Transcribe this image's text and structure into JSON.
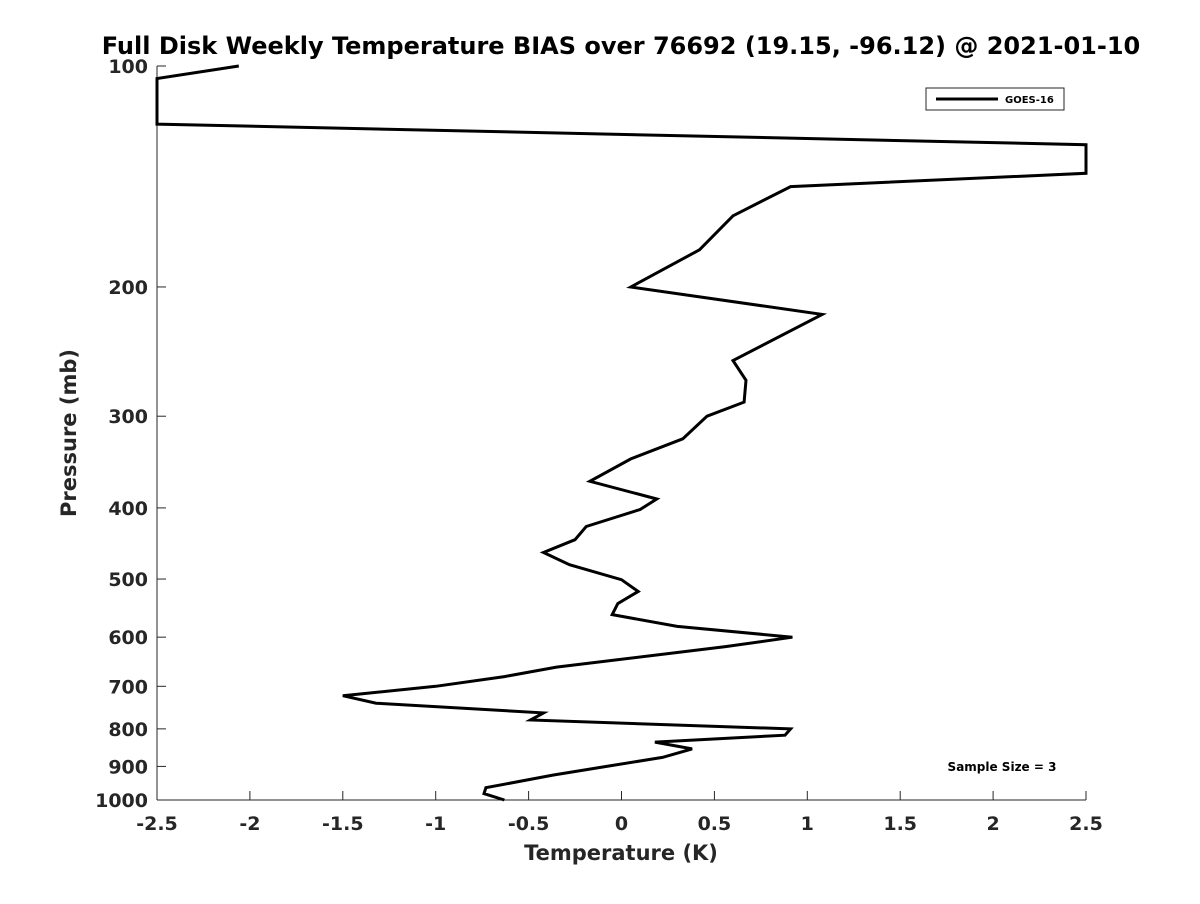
{
  "chart_data": {
    "type": "line",
    "title": "Full Disk Weekly Temperature BIAS over 76692 (19.15, -96.12) @ 2021-01-10",
    "xlabel": "Temperature (K)",
    "ylabel": "Pressure (mb)",
    "xlim": [
      -2.5,
      2.5
    ],
    "ylim": [
      1000,
      100
    ],
    "y_scale": "log",
    "grid": false,
    "legend_position": "top-right",
    "annotation": "Sample Size = 3",
    "x_ticks": [
      -2.5,
      -2,
      -1.5,
      -1,
      -0.5,
      0,
      0.5,
      1,
      1.5,
      2,
      2.5
    ],
    "x_tick_labels": [
      "-2.5",
      "-2",
      "-1.5",
      "-1",
      "-0.5",
      "0",
      "0.5",
      "1",
      "1.5",
      "2",
      "2.5"
    ],
    "y_ticks": [
      100,
      200,
      300,
      400,
      500,
      600,
      700,
      800,
      900,
      1000
    ],
    "y_tick_labels": [
      "100",
      "200",
      "300",
      "400",
      "500",
      "600",
      "700",
      "800",
      "900",
      "1000"
    ],
    "series": [
      {
        "name": "GOES-16",
        "color": "#000000",
        "points": [
          {
            "t": -2.06,
            "p": 100
          },
          {
            "t": -2.5,
            "p": 104
          },
          {
            "t": -2.5,
            "p": 120
          },
          {
            "t": 2.5,
            "p": 128
          },
          {
            "t": 2.5,
            "p": 140
          },
          {
            "t": 0.91,
            "p": 146
          },
          {
            "t": 0.6,
            "p": 160
          },
          {
            "t": 0.42,
            "p": 178
          },
          {
            "t": 0.05,
            "p": 200
          },
          {
            "t": 1.08,
            "p": 218
          },
          {
            "t": 0.6,
            "p": 252
          },
          {
            "t": 0.67,
            "p": 268
          },
          {
            "t": 0.66,
            "p": 287
          },
          {
            "t": 0.46,
            "p": 300
          },
          {
            "t": 0.33,
            "p": 322
          },
          {
            "t": 0.05,
            "p": 343
          },
          {
            "t": -0.17,
            "p": 368
          },
          {
            "t": 0.19,
            "p": 389
          },
          {
            "t": 0.1,
            "p": 402
          },
          {
            "t": -0.19,
            "p": 424
          },
          {
            "t": -0.25,
            "p": 442
          },
          {
            "t": -0.42,
            "p": 460
          },
          {
            "t": -0.28,
            "p": 478
          },
          {
            "t": 0.0,
            "p": 501
          },
          {
            "t": 0.09,
            "p": 520
          },
          {
            "t": -0.02,
            "p": 540
          },
          {
            "t": -0.05,
            "p": 559
          },
          {
            "t": 0.3,
            "p": 580
          },
          {
            "t": 0.92,
            "p": 600
          },
          {
            "t": 0.56,
            "p": 618
          },
          {
            "t": -0.35,
            "p": 659
          },
          {
            "t": -0.63,
            "p": 679
          },
          {
            "t": -1.0,
            "p": 700
          },
          {
            "t": -1.5,
            "p": 721
          },
          {
            "t": -1.32,
            "p": 738
          },
          {
            "t": -0.42,
            "p": 761
          },
          {
            "t": -0.49,
            "p": 778
          },
          {
            "t": 0.91,
            "p": 800
          },
          {
            "t": 0.88,
            "p": 816
          },
          {
            "t": 0.18,
            "p": 834
          },
          {
            "t": 0.38,
            "p": 852
          },
          {
            "t": 0.22,
            "p": 875
          },
          {
            "t": -0.08,
            "p": 900
          },
          {
            "t": -0.37,
            "p": 925
          },
          {
            "t": -0.73,
            "p": 962
          },
          {
            "t": -0.74,
            "p": 980
          },
          {
            "t": -0.63,
            "p": 1000
          }
        ]
      }
    ]
  }
}
